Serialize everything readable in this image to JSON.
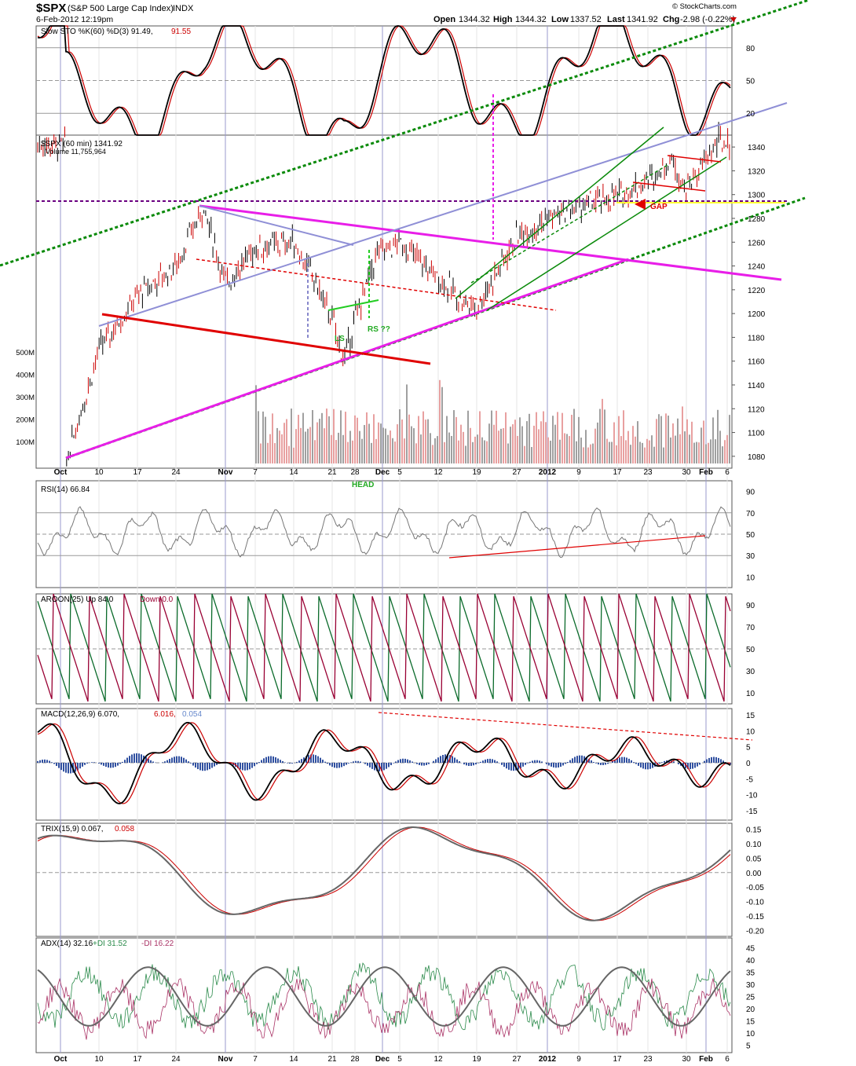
{
  "header": {
    "symbol": "$SPX",
    "name": "(S&P 500 Large Cap Index)",
    "exchange": "INDX",
    "datetime": "6-Feb-2012 12:19pm",
    "watermark": "© StockCharts.com",
    "quote": {
      "open_label": "Open",
      "open": "1344.32",
      "high_label": "High",
      "high": "1344.32",
      "low_label": "Low",
      "low": "1337.52",
      "last_label": "Last",
      "last": "1341.92",
      "chg_label": "Chg",
      "chg": "-2.98 (-0.22%)"
    }
  },
  "colors": {
    "price_up": "#000000",
    "price_down": "#cc0000",
    "pink": "#e81ee8",
    "green": "#0a8a0a",
    "lavender": "#8f8fd6",
    "red": "#e00000",
    "yellow": "#ffff33",
    "purple": "#6a0080",
    "aroon_up": "#0a6a2a",
    "aroon_down": "#990033",
    "macd_hist": "#3050a0"
  },
  "x_axis": {
    "labels": [
      "Oct",
      "10",
      "17",
      "24",
      "Nov",
      "7",
      "14",
      "21",
      "28",
      "Dec",
      "5",
      "12",
      "19",
      "27",
      "2012",
      "9",
      "17",
      "23",
      "30",
      "Feb",
      "6"
    ],
    "month_labels": [
      "Oct",
      "Nov",
      "Dec",
      "2012",
      "Feb"
    ]
  },
  "panels": {
    "sto": {
      "title": "Slow STO %K(60) %D(3) 91.49,",
      "d_value": "91.55",
      "ticks": [
        "80",
        "50",
        "20"
      ]
    },
    "price": {
      "title": "$SPX (60 min) 1341.92",
      "volume": "Volume 11,755,964",
      "ticks": [
        "1340",
        "1320",
        "1300",
        "1280",
        "1260",
        "1240",
        "1220",
        "1200",
        "1180",
        "1160",
        "1140",
        "1120",
        "1100",
        "1080"
      ],
      "vol_ticks": [
        "500M",
        "400M",
        "300M",
        "200M",
        "100M"
      ]
    },
    "rsi": {
      "title": "RSI(14) 66.84",
      "ticks": [
        "90",
        "70",
        "50",
        "30",
        "10"
      ]
    },
    "aroon": {
      "title": "AROON(25) Up 84.0",
      "down_label": "Down 0.0",
      "ticks": [
        "90",
        "70",
        "50",
        "30",
        "10"
      ]
    },
    "macd": {
      "title": "MACD(12,26,9) 6.070,",
      "signal": "6.016,",
      "hist": "0.054",
      "ticks": [
        "15",
        "10",
        "5",
        "0",
        "-5",
        "-10",
        "-15"
      ]
    },
    "trix": {
      "title": "TRIX(15,9) 0.067,",
      "signal": "0.058",
      "ticks": [
        "0.15",
        "0.10",
        "0.05",
        "0.00",
        "-0.05",
        "-0.10",
        "-0.15",
        "-0.20"
      ]
    },
    "adx": {
      "title": "ADX(14) 32.16",
      "pdi": "+DI 31.52",
      "mdi": "-DI 16.22",
      "ticks": [
        "45",
        "40",
        "35",
        "30",
        "25",
        "20",
        "15",
        "10",
        "5"
      ]
    }
  },
  "annotations": {
    "gap": "GAP",
    "ls": "LS",
    "rs": "RS ??",
    "head": "HEAD"
  },
  "chart_data": {
    "type": "line",
    "title": "$SPX (S&P 500 Large Cap Index) INDX",
    "series": [
      {
        "name": "$SPX (60 min)",
        "x": [
          "Oct 4",
          "Oct 10",
          "Oct 17",
          "Oct 24",
          "Oct 27",
          "Nov 1",
          "Nov 7",
          "Nov 14",
          "Nov 17",
          "Nov 21",
          "Nov 25",
          "Nov 28",
          "Dec 1",
          "Dec 5",
          "Dec 12",
          "Dec 16",
          "Dec 19",
          "Dec 27",
          "Jan 3",
          "Jan 9",
          "Jan 17",
          "Jan 23",
          "Jan 27",
          "Jan 30",
          "Feb 3",
          "Feb 6"
        ],
        "values": [
          1075,
          1170,
          1215,
          1240,
          1290,
          1225,
          1255,
          1260,
          1230,
          1195,
          1160,
          1195,
          1250,
          1260,
          1230,
          1210,
          1205,
          1265,
          1280,
          1290,
          1298,
          1312,
          1330,
          1305,
          1345,
          1341.92
        ]
      }
    ],
    "ylim": [
      1070,
      1350
    ],
    "horizontal_lines": [
      {
        "label": "GAP",
        "value": 1290
      }
    ]
  }
}
